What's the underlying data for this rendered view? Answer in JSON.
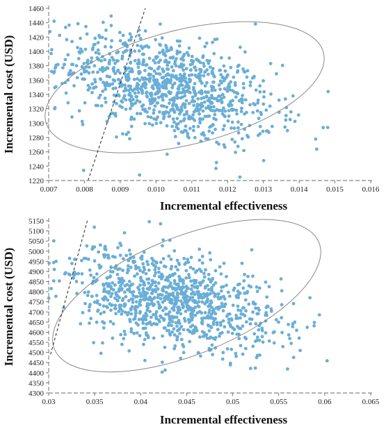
{
  "chart_data": [
    {
      "type": "scatter",
      "xlabel": "Incremental effectiveness",
      "ylabel": "Incremental cost (USD)",
      "xlim": [
        0.007,
        0.016
      ],
      "ylim": [
        1220,
        1460
      ],
      "xticks": [
        "0.007",
        "0.008",
        "0.009",
        "0.010",
        "0.011",
        "0.012",
        "0.013",
        "0.014",
        "0.015",
        "0.016"
      ],
      "yticks": [
        "1220",
        "1240",
        "1260",
        "1280",
        "1300",
        "1320",
        "1340",
        "1360",
        "1380",
        "1400",
        "1420",
        "1440",
        "1460"
      ],
      "point_color": "#6aaed6",
      "n_points": 1000,
      "mean": [
        0.0103,
        1350
      ],
      "sd": [
        0.0015,
        38
      ],
      "correlation": -0.45,
      "ellipse": {
        "center": [
          0.0108,
          1350
        ],
        "semi_axes": [
          0.004,
          80
        ],
        "rotation_deg": -14
      },
      "wtp_line": [
        [
          0.0081,
          1220
        ],
        [
          0.0097,
          1460
        ]
      ],
      "grid": false,
      "legend": "none"
    },
    {
      "type": "scatter",
      "xlabel": "Incremental effectiveness",
      "ylabel": "Incremental cost (USD)",
      "xlim": [
        0.03,
        0.065
      ],
      "ylim": [
        4300,
        5150
      ],
      "xticks": [
        "0.03",
        "0.035",
        "0.04",
        "0.045",
        "0.05",
        "0.055",
        "0.06",
        "0.065"
      ],
      "yticks": [
        "4300",
        "4350",
        "4400",
        "4450",
        "4500",
        "4550",
        "4600",
        "4650",
        "4700",
        "4750",
        "4800",
        "4850",
        "4900",
        "4950",
        "5000",
        "5050",
        "5100",
        "5150"
      ],
      "point_color": "#6aaed6",
      "n_points": 1000,
      "mean": [
        0.043,
        4760
      ],
      "sd": [
        0.006,
        130
      ],
      "correlation": -0.42,
      "ellipse": {
        "center": [
          0.045,
          4780
        ],
        "semi_axes": [
          0.0155,
          290
        ],
        "rotation_deg": -22
      },
      "wtp_line": [
        [
          0.0302,
          4490
        ],
        [
          0.0342,
          5150
        ]
      ],
      "grid": false,
      "legend": "none"
    }
  ]
}
